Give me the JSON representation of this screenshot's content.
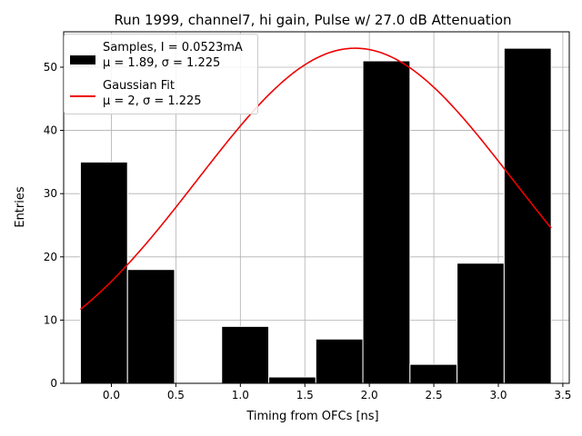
{
  "chart_data": {
    "type": "bar",
    "title": "Run 1999, channel7, hi gain, Pulse w/ 27.0 dB Attenuation",
    "xlabel": "Timing from OFCs [ns]",
    "ylabel": "Entries",
    "xlim": [
      -0.37,
      3.55
    ],
    "ylim": [
      0,
      55.6
    ],
    "grid": true,
    "legend_position": "top-left",
    "x_ticks": [
      "0.0",
      "0.5",
      "1.0",
      "1.5",
      "2.0",
      "2.5",
      "3.0",
      "3.5"
    ],
    "y_ticks": [
      "0",
      "10",
      "20",
      "30",
      "40",
      "50"
    ],
    "bin_edges": [
      -0.24,
      0.125,
      0.49,
      0.855,
      1.22,
      1.585,
      1.95,
      2.315,
      2.68,
      3.045,
      3.41
    ],
    "values": [
      35,
      18,
      0,
      9,
      1,
      7,
      51,
      3,
      19,
      53
    ],
    "series": [
      {
        "name": "Samples, I = 0.0523mA",
        "name_line2": "μ = 1.89, σ = 1.225",
        "type": "histogram",
        "color": "#000000"
      },
      {
        "name": "Gaussian Fit",
        "name_line2": "μ = 2, σ = 1.225",
        "type": "line",
        "color": "#ee0000",
        "fit": {
          "amplitude": 53.0,
          "mu": 1.89,
          "sigma": 1.225,
          "x_start": -0.24,
          "x_end": 3.41
        }
      }
    ]
  }
}
